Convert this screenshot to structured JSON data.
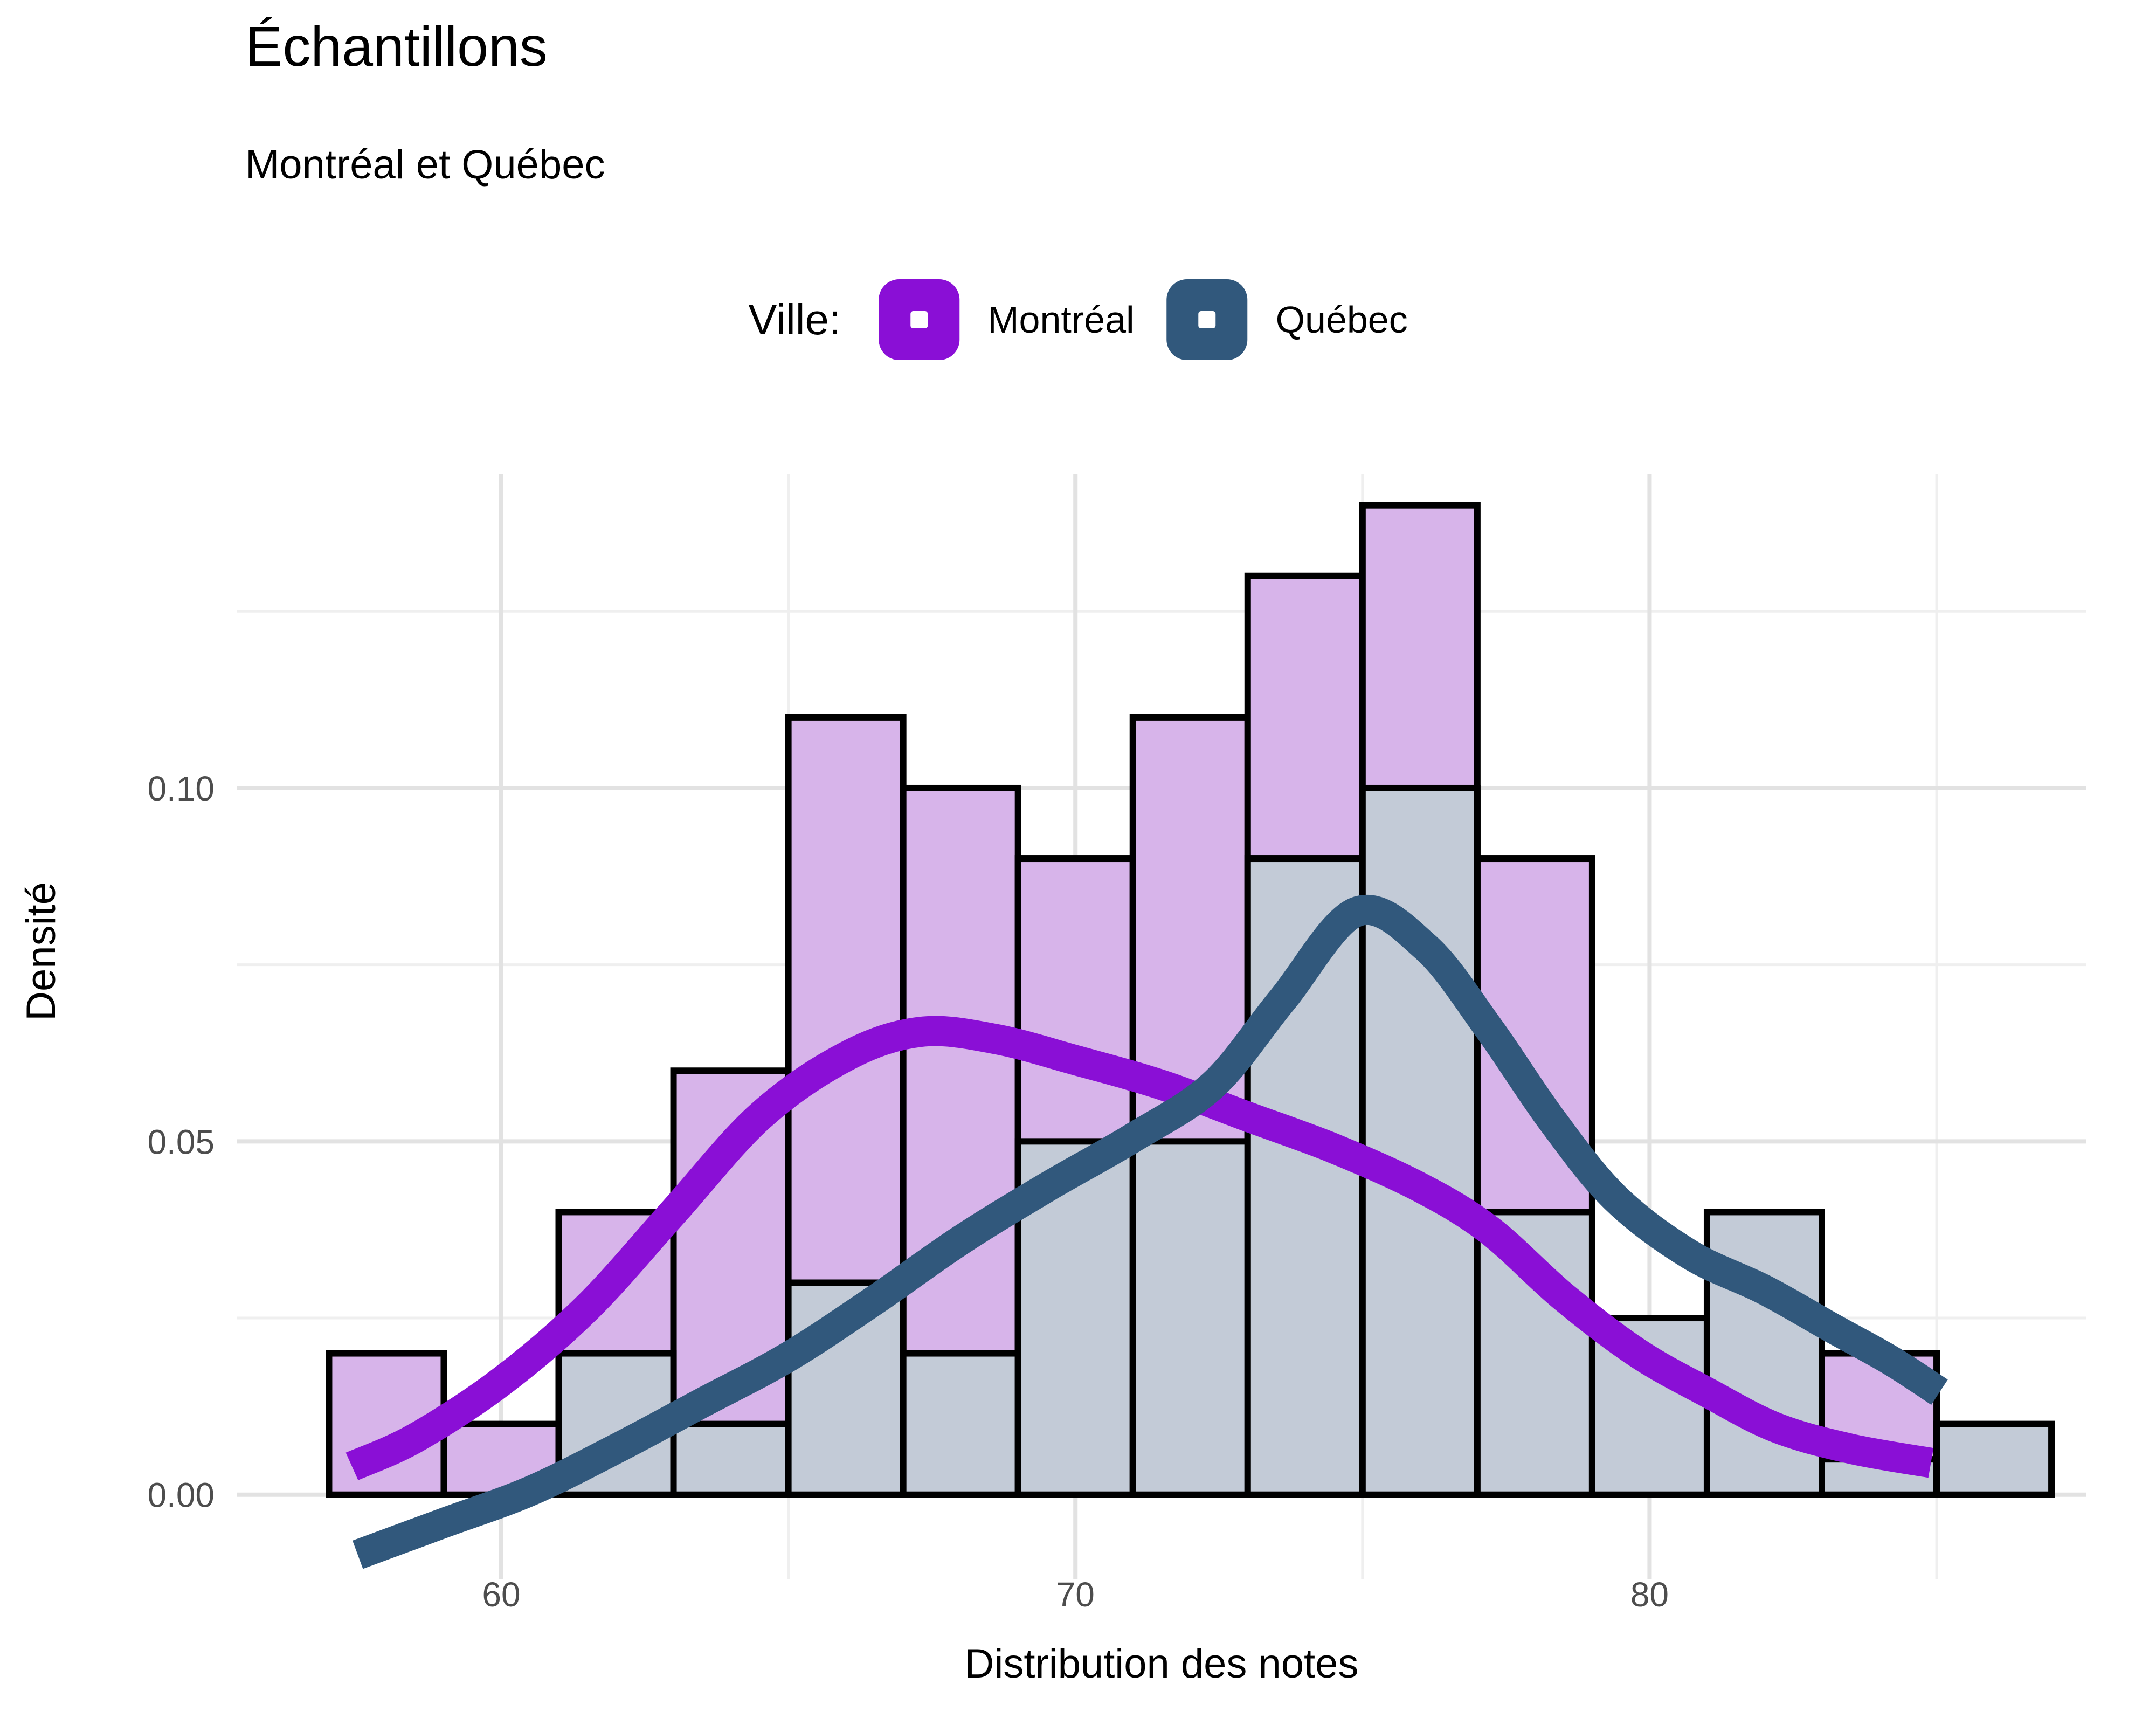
{
  "title": "Échantillons",
  "subtitle": "Montréal et Québec",
  "legend": {
    "title": "Ville:",
    "items": [
      {
        "label": "Montréal",
        "color": "#8A0FD6"
      },
      {
        "label": "Québec",
        "color": "#31587C"
      }
    ]
  },
  "chart_data": {
    "type": "histogram+density",
    "title": "Échantillons",
    "subtitle": "Montréal et Québec",
    "xlabel": "Distribution des notes",
    "ylabel": "Densité",
    "legend_title": "Ville:",
    "legend_position": "top",
    "grid_on": true,
    "xlim": [
      55.4,
      87.6
    ],
    "ylim": [
      -0.012,
      0.1444
    ],
    "x_ticks": [
      60,
      70,
      80
    ],
    "x_minor": [
      65,
      75,
      85
    ],
    "y_ticks": [
      0,
      0.05,
      0.1
    ],
    "y_tick_labels": [
      "0.00",
      "0.05",
      "0.10"
    ],
    "y_minor": [
      0.025,
      0.075,
      0.125
    ],
    "bin_width": 2,
    "bin_starts": [
      57,
      59,
      61,
      63,
      65,
      67,
      69,
      71,
      73,
      75,
      77,
      79,
      81,
      83,
      85
    ],
    "series": [
      {
        "name": "Montréal",
        "bar_fill": "#D7B4EA",
        "line_color": "#8A0FD6",
        "densities": [
          0.02,
          0.01,
          0.04,
          0.06,
          0.11,
          0.1,
          0.09,
          0.11,
          0.13,
          0.14,
          0.09,
          0,
          0,
          0.02,
          0
        ],
        "smooth": [
          [
            57.4,
            0.004
          ],
          [
            58.5,
            0.008
          ],
          [
            60,
            0.016
          ],
          [
            61.5,
            0.0265
          ],
          [
            63,
            0.04
          ],
          [
            64.5,
            0.0535
          ],
          [
            66,
            0.062
          ],
          [
            67.3,
            0.0655
          ],
          [
            68.6,
            0.0645
          ],
          [
            70,
            0.0615
          ],
          [
            71.5,
            0.058
          ],
          [
            73,
            0.0535
          ],
          [
            74.5,
            0.049
          ],
          [
            76,
            0.0435
          ],
          [
            77.2,
            0.0375
          ],
          [
            78.5,
            0.028
          ],
          [
            79.8,
            0.02
          ],
          [
            81,
            0.0145
          ],
          [
            82.2,
            0.0095
          ],
          [
            83.5,
            0.0065
          ],
          [
            84.9,
            0.0045
          ]
        ]
      },
      {
        "name": "Québec",
        "bar_fill": "#C3CBD7",
        "line_color": "#31587C",
        "densities": [
          0,
          0,
          0.02,
          0.01,
          0.03,
          0.02,
          0.05,
          0.05,
          0.09,
          0.1,
          0.04,
          0.025,
          0.04,
          0.005,
          0.01
        ],
        "smooth": [
          [
            57.5,
            -0.0085
          ],
          [
            59,
            -0.004
          ],
          [
            60.5,
            0.0005
          ],
          [
            62,
            0.0065
          ],
          [
            63.5,
            0.013
          ],
          [
            65,
            0.0195
          ],
          [
            66.5,
            0.0275
          ],
          [
            68,
            0.036
          ],
          [
            69.5,
            0.0435
          ],
          [
            71,
            0.0505
          ],
          [
            72.4,
            0.058
          ],
          [
            73.6,
            0.07
          ],
          [
            74.9,
            0.0825
          ],
          [
            76.1,
            0.0775
          ],
          [
            77.2,
            0.066
          ],
          [
            78.3,
            0.053
          ],
          [
            79.4,
            0.042
          ],
          [
            80.7,
            0.034
          ],
          [
            82,
            0.029
          ],
          [
            83.2,
            0.0235
          ],
          [
            84.2,
            0.019
          ],
          [
            85.05,
            0.0145
          ]
        ]
      }
    ],
    "colors": {
      "grid_major": "#E2E2E2",
      "grid_minor": "#EFEFEF",
      "bar_outline": "#000000",
      "tick_label": "#4d4d4d"
    }
  }
}
